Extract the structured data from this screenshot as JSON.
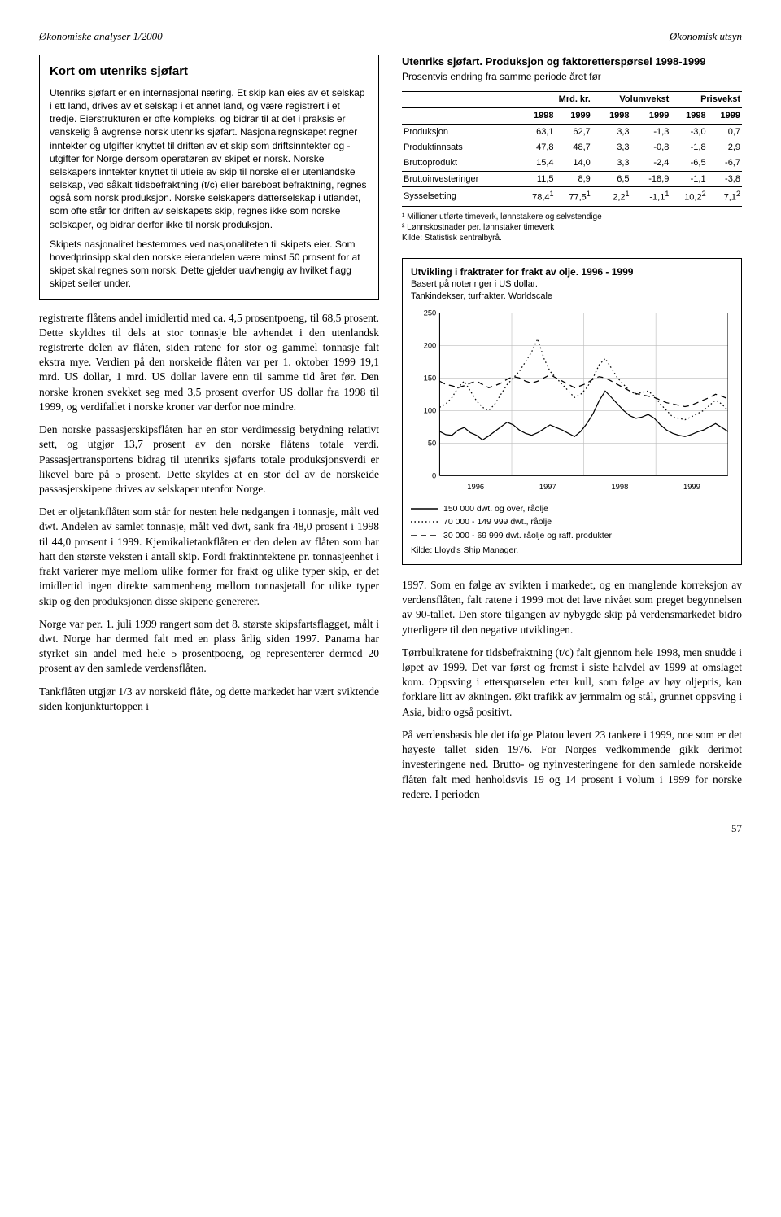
{
  "running_head": {
    "left": "Økonomiske analyser 1/2000",
    "right": "Økonomisk utsyn"
  },
  "box": {
    "title": "Kort om utenriks sjøfart",
    "p1": "Utenriks sjøfart er en internasjonal næring. Et skip kan eies av et selskap i ett land, drives av et selskap i et annet land, og være registrert i et tredje. Eierstrukturen er ofte kompleks, og bidrar til at det i praksis er vanskelig å avgrense norsk utenriks sjøfart. Nasjonalregnskapet regner inntekter og utgifter knyttet til driften av et skip som driftsinntekter og -utgifter for Norge dersom operatøren av skipet er norsk. Norske selskapers inntekter knyttet til utleie av skip til norske eller utenlandske selskap, ved såkalt tidsbefraktning (t/c) eller bareboat befraktning, regnes også som norsk produksjon. Norske selskapers datterselskap i utlandet, som ofte står for driften av selskapets skip, regnes ikke som norske selskaper, og bidrar derfor ikke til norsk produksjon.",
    "p2": "Skipets nasjonalitet bestemmes ved nasjonaliteten til skipets eier. Som hovedprinsipp skal den norske eierandelen være minst 50 prosent for at skipet skal regnes som norsk. Dette gjelder uavhengig av hvilket flagg skipet seiler under."
  },
  "left_body": {
    "p1": "registrerte flåtens andel imidlertid med ca. 4,5 prosentpoeng, til 68,5 prosent. Dette skyldtes til dels at stor tonnasje ble avhendet i den utenlandsk registrerte delen av flåten, siden ratene for stor og gammel tonnasje falt ekstra mye. Verdien på den norskeide flåten var per 1. oktober 1999 19,1 mrd. US dollar, 1 mrd. US dollar lavere enn til samme tid året før. Den norske kronen svekket seg med 3,5 prosent overfor US dollar fra 1998 til 1999, og verdifallet i norske kroner var derfor noe mindre.",
    "p2": "Den norske passasjerskipsflåten har en stor verdimessig betydning relativt sett, og utgjør 13,7 prosent av den norske flåtens totale verdi. Passasjertransportens bidrag til utenriks sjøfarts totale produksjonsverdi er likevel bare på 5 prosent. Dette skyldes at en stor del av de norskeide passasjerskipene drives av selskaper utenfor Norge.",
    "p3": "Det er oljetankflåten som står for nesten hele nedgangen i tonnasje, målt ved dwt. Andelen av samlet tonnasje, målt ved dwt, sank fra 48,0 prosent i 1998 til 44,0 prosent i 1999. Kjemikalietankflåten er den delen av flåten som har hatt den største veksten i antall skip. Fordi fraktinntektene pr. tonnasjeenhet i frakt varierer mye mellom ulike former for frakt og ulike typer skip, er det imidlertid ingen direkte sammenheng mellom tonnasjetall for ulike typer skip og den produksjonen disse skipene genererer.",
    "p4": "Norge var per. 1. juli 1999 rangert som det 8. største skipsfartsflagget, målt i dwt. Norge har dermed falt med en plass årlig siden 1997. Panama har styrket sin andel med hele 5 prosentpoeng, og representerer dermed 20 prosent av den samlede verdensflåten.",
    "p5": "Tankflåten utgjør 1/3 av norskeid flåte, og dette markedet har vært sviktende siden konjunkturtoppen i"
  },
  "table": {
    "title": "Utenriks sjøfart. Produksjon og faktoretterspørsel 1998-1999",
    "subtitle": "Prosentvis endring fra samme periode året før",
    "group_headers": [
      "Mrd. kr.",
      "Volumvekst",
      "Prisvekst"
    ],
    "year_headers": [
      "1998",
      "1999",
      "1998",
      "1999",
      "1998",
      "1999"
    ],
    "rows": [
      {
        "label": "Produksjon",
        "vals": [
          "63,1",
          "62,7",
          "3,3",
          "-1,3",
          "-3,0",
          "0,7"
        ]
      },
      {
        "label": "Produktinnsats",
        "vals": [
          "47,8",
          "48,7",
          "3,3",
          "-0,8",
          "-1,8",
          "2,9"
        ]
      },
      {
        "label": "Bruttoprodukt",
        "vals": [
          "15,4",
          "14,0",
          "3,3",
          "-2,4",
          "-6,5",
          "-6,7"
        ]
      }
    ],
    "row_invest": {
      "label": "Bruttoinvesteringer",
      "vals": [
        "11,5",
        "8,9",
        "6,5",
        "-18,9",
        "-1,1",
        "-3,8"
      ]
    },
    "row_employ": {
      "label": "Sysselsetting",
      "vals": [
        "78,4",
        "77,5",
        "2,2",
        "-1,1",
        "10,2",
        "7,1"
      ],
      "sup": [
        "1",
        "1",
        "1",
        "1",
        "2",
        "2"
      ]
    },
    "fn1": "¹ Millioner utførte timeverk, lønnstakere og selvstendige",
    "fn2": "² Lønnskostnader per. lønnstaker timeverk",
    "source": "Kilde: Statistisk sentralbyrå."
  },
  "chart": {
    "title": "Utvikling i fraktrater for frakt av olje. 1996 - 1999",
    "subtitle1": "Basert på noteringer i US dollar.",
    "subtitle2": "Tankindekser, turfrakter. Worldscale",
    "ylim": [
      0,
      250
    ],
    "ytick_step": 50,
    "yticks": [
      0,
      50,
      100,
      150,
      200,
      250
    ],
    "xticks": [
      "1996",
      "1997",
      "1998",
      "1999"
    ],
    "grid_color": "#bdbdbd",
    "axis_color": "#000000",
    "plot_bg": "#ffffff",
    "series": [
      {
        "name": "150 000 dwt. og over, råolje",
        "dash": "solid",
        "color": "#000000",
        "points": [
          68,
          63,
          62,
          70,
          74,
          66,
          62,
          55,
          61,
          68,
          75,
          82,
          78,
          70,
          65,
          62,
          66,
          72,
          78,
          74,
          70,
          65,
          60,
          68,
          80,
          95,
          115,
          130,
          120,
          110,
          100,
          92,
          88,
          90,
          94,
          88,
          78,
          70,
          65,
          62,
          60,
          63,
          67,
          70,
          75,
          80,
          74,
          68
        ]
      },
      {
        "name": "70 000 - 149 999 dwt., råolje",
        "dash": "dot",
        "color": "#000000",
        "points": [
          105,
          110,
          120,
          135,
          145,
          130,
          115,
          105,
          100,
          110,
          125,
          140,
          150,
          160,
          175,
          190,
          210,
          180,
          160,
          150,
          140,
          130,
          120,
          125,
          135,
          150,
          170,
          180,
          165,
          150,
          140,
          130,
          125,
          128,
          130,
          122,
          110,
          100,
          90,
          88,
          86,
          90,
          95,
          100,
          108,
          116,
          110,
          100
        ]
      },
      {
        "name": "30 000 - 69 999 dwt. råolje og raff. produkter",
        "dash": "dash",
        "color": "#000000",
        "points": [
          145,
          140,
          138,
          135,
          138,
          142,
          145,
          140,
          135,
          138,
          142,
          148,
          152,
          150,
          145,
          142,
          145,
          150,
          155,
          150,
          145,
          140,
          135,
          138,
          142,
          148,
          152,
          150,
          145,
          140,
          135,
          130,
          126,
          124,
          122,
          120,
          116,
          112,
          110,
          108,
          106,
          108,
          112,
          116,
          120,
          125,
          122,
          118
        ]
      }
    ],
    "source": "Kilde: Lloyd's Ship Manager."
  },
  "right_body": {
    "p1": "1997. Som en følge av svikten i markedet, og en manglende korreksjon av verdensflåten, falt ratene i 1999 mot det lave nivået som preget begynnelsen av 90-tallet. Den store tilgangen av nybygde skip på verdensmarkedet bidro ytterligere til den negative utviklingen.",
    "p2": "Tørrbulkratene for tidsbefraktning (t/c) falt gjennom hele 1998, men snudde i løpet av 1999. Det var først og fremst i siste halvdel av 1999 at omslaget kom. Oppsving i etterspørselen etter kull, som følge av høy oljepris, kan forklare litt av økningen. Økt trafikk av jernmalm og stål, grunnet oppsving i Asia, bidro også positivt.",
    "p3": "På verdensbasis ble det ifølge Platou levert 23 tankere i 1999, noe som er det høyeste tallet siden 1976. For Norges vedkommende gikk derimot investeringene ned. Brutto- og nyinvesteringene for den samlede norskeide flåten falt med henholdsvis 19 og 14 prosent i volum i 1999 for norske redere. I perioden"
  },
  "page_number": "57"
}
